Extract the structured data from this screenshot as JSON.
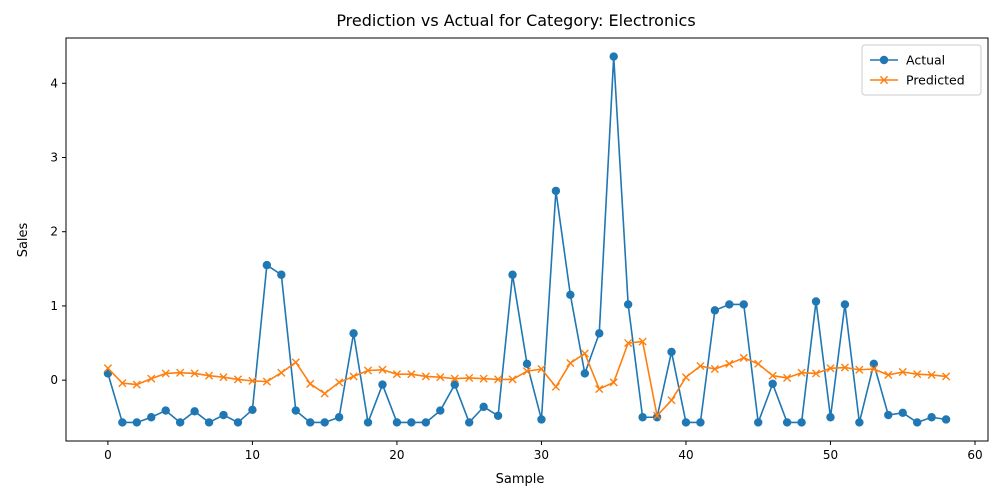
{
  "chart_data": {
    "type": "line",
    "title": "Prediction vs Actual for Category: Electronics",
    "xlabel": "Sample",
    "ylabel": "Sales",
    "xlim": [
      -2.9,
      60.9
    ],
    "ylim": [
      -0.82,
      4.61
    ],
    "x_ticks": [
      0,
      10,
      20,
      30,
      40,
      50,
      60
    ],
    "y_ticks": [
      0,
      1,
      2,
      3,
      4
    ],
    "grid": false,
    "legend_position": "top-right",
    "x": [
      0,
      1,
      2,
      3,
      4,
      5,
      6,
      7,
      8,
      9,
      10,
      11,
      12,
      13,
      14,
      15,
      16,
      17,
      18,
      19,
      20,
      21,
      22,
      23,
      24,
      25,
      26,
      27,
      28,
      29,
      30,
      31,
      32,
      33,
      34,
      35,
      36,
      37,
      38,
      39,
      40,
      41,
      42,
      43,
      44,
      45,
      46,
      47,
      48,
      49,
      50,
      51,
      52,
      53,
      54,
      55,
      56,
      57,
      58
    ],
    "series": [
      {
        "name": "Actual",
        "color": "#1f77b4",
        "marker": "circle",
        "values": [
          0.09,
          -0.57,
          -0.57,
          -0.5,
          -0.41,
          -0.57,
          -0.42,
          -0.57,
          -0.47,
          -0.57,
          -0.4,
          1.55,
          1.42,
          -0.41,
          -0.57,
          -0.57,
          -0.5,
          0.63,
          -0.57,
          -0.06,
          -0.57,
          -0.57,
          -0.57,
          -0.41,
          -0.06,
          -0.57,
          -0.36,
          -0.48,
          1.42,
          0.22,
          -0.53,
          2.55,
          1.15,
          0.09,
          0.63,
          4.36,
          1.02,
          -0.5,
          -0.5,
          0.38,
          -0.57,
          -0.57,
          0.94,
          1.02,
          1.02,
          -0.57,
          -0.05,
          -0.57,
          -0.57,
          1.06,
          -0.5,
          1.02,
          -0.57,
          0.22,
          -0.47,
          -0.44,
          -0.57,
          -0.5,
          -0.53
        ]
      },
      {
        "name": "Predicted",
        "color": "#ff7f0e",
        "marker": "x",
        "values": [
          0.16,
          -0.04,
          -0.06,
          0.02,
          0.09,
          0.1,
          0.09,
          0.06,
          0.04,
          0.01,
          -0.01,
          -0.02,
          0.1,
          0.24,
          -0.05,
          -0.18,
          -0.03,
          0.05,
          0.13,
          0.14,
          0.08,
          0.08,
          0.05,
          0.04,
          0.02,
          0.03,
          0.02,
          0.01,
          0.01,
          0.12,
          0.15,
          -0.09,
          0.23,
          0.36,
          -0.12,
          -0.03,
          0.5,
          0.52,
          -0.48,
          -0.27,
          0.04,
          0.19,
          0.15,
          0.22,
          0.3,
          0.22,
          0.06,
          0.03,
          0.1,
          0.09,
          0.16,
          0.17,
          0.14,
          0.15,
          0.07,
          0.11,
          0.08,
          0.07,
          0.05
        ]
      }
    ]
  }
}
